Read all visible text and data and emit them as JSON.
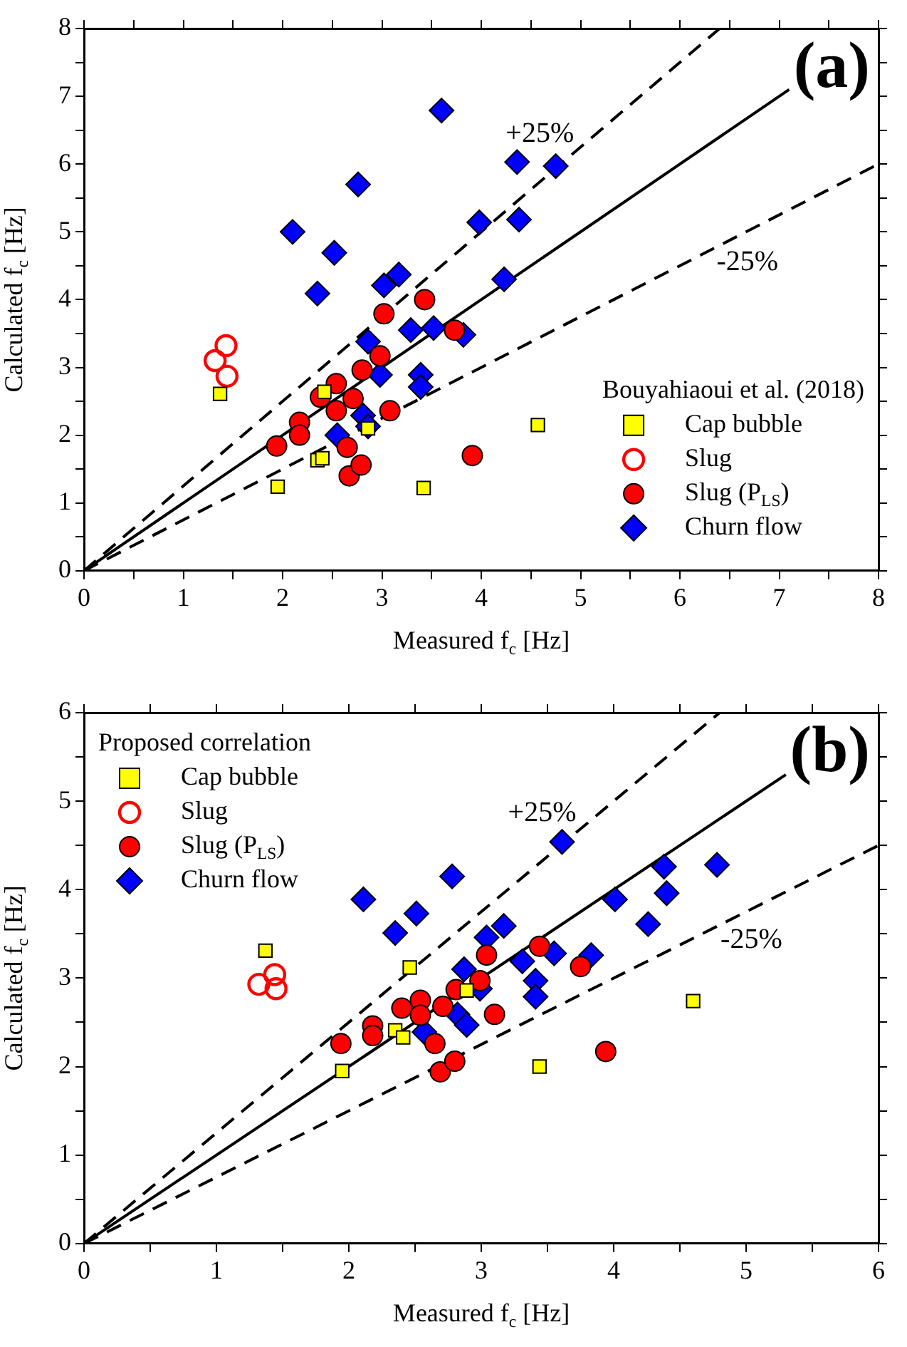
{
  "chart_data": [
    {
      "type": "scatter",
      "xlabel": "Measured f$_{c}$ [Hz]",
      "ylabel": "Calculated f$_{c}$ [Hz]",
      "legend_title": "Bouyahiaoui et al. (2018)",
      "legend": "bottom right",
      "grid": false,
      "xlim": [
        0,
        8
      ],
      "ylim": [
        0,
        8
      ],
      "xticks": [
        0,
        {
          "value": 0.5,
          "label": null
        },
        1,
        {
          "value": 1.5,
          "label": null
        },
        2,
        {
          "value": 2.5,
          "label": null
        },
        3,
        {
          "value": 3.5,
          "label": null
        },
        4,
        {
          "value": 4.5,
          "label": null
        },
        5,
        {
          "value": 5.5,
          "label": null
        },
        6,
        {
          "value": 6.5,
          "label": null
        },
        7,
        {
          "value": 7.5,
          "label": null
        },
        8
      ],
      "yticks": [
        0,
        {
          "value": 0.5,
          "label": null
        },
        1,
        {
          "value": 1.5,
          "label": null
        },
        2,
        {
          "value": 2.5,
          "label": null
        },
        3,
        {
          "value": 3.5,
          "label": null
        },
        4,
        {
          "value": 4.5,
          "label": null
        },
        5,
        {
          "value": 5.5,
          "label": null
        },
        6,
        {
          "value": 6.5,
          "label": null
        },
        7,
        {
          "value": 7.5,
          "label": null
        },
        8
      ],
      "annotations": [
        "(a)",
        {
          "text": "+25%",
          "x": 4.59,
          "y": 5.74
        },
        {
          "text": "-25%",
          "x": 6.68,
          "y": 5.01
        }
      ],
      "series": [
        {
          "type": "line",
          "color": "#000000",
          "marker": "none",
          "line_style": "solid",
          "x": [
            0,
            7.1
          ],
          "values": [
            0,
            7.1
          ]
        },
        {
          "type": "line",
          "color": "#000000",
          "marker": "none",
          "line_style": "dashed",
          "x": [
            0,
            6.4
          ],
          "values": [
            0,
            8
          ]
        },
        {
          "type": "line",
          "color": "#000000",
          "marker": "none",
          "line_style": "dashed",
          "x": [
            0,
            8
          ],
          "values": [
            0,
            6
          ]
        },
        {
          "name": "Cap bubble",
          "color": "#ffff00",
          "marker": "square",
          "x": [
            1.37,
            1.95,
            2.35,
            2.4,
            2.42,
            2.86,
            3.42,
            4.57
          ],
          "values": [
            2.61,
            1.24,
            1.63,
            1.66,
            2.64,
            2.1,
            1.22,
            2.15
          ]
        },
        {
          "name": "Slug",
          "color": "#ff0000",
          "marker": "circle-open",
          "x": [
            1.32,
            1.43,
            1.44
          ],
          "values": [
            3.1,
            3.32,
            2.87
          ]
        },
        {
          "name": "Slug (P$_{LS}$)",
          "color": "#ff0000",
          "marker": "circle",
          "x": [
            1.94,
            2.17,
            2.17,
            2.38,
            2.54,
            2.54,
            2.71,
            2.8,
            2.65,
            2.67,
            2.79,
            2.98,
            3.02,
            3.08,
            3.43,
            3.73,
            3.91
          ],
          "values": [
            1.84,
            2.19,
            2.0,
            2.56,
            2.76,
            2.36,
            2.54,
            2.96,
            1.82,
            1.4,
            1.56,
            3.17,
            3.79,
            2.36,
            4.0,
            3.55,
            1.7
          ]
        },
        {
          "name": "Churn flow",
          "color": "#0000ff",
          "marker": "diamond",
          "x": [
            3.6,
            2.76,
            2.1,
            2.52,
            2.35,
            3.02,
            3.17,
            2.86,
            3.29,
            3.52,
            3.82,
            2.98,
            3.39,
            3.39,
            2.81,
            2.86,
            2.55,
            3.98,
            4.23,
            4.36,
            4.75,
            4.38
          ],
          "values": [
            6.79,
            5.7,
            5.0,
            4.69,
            4.09,
            4.21,
            4.37,
            3.38,
            3.55,
            3.58,
            3.48,
            2.89,
            2.89,
            2.71,
            2.29,
            2.13,
            2.0,
            5.14,
            4.3,
            6.03,
            5.97,
            5.18
          ]
        }
      ]
    },
    {
      "type": "scatter",
      "xlabel": "Measured f$_{c}$ [Hz]",
      "ylabel": "Calculated f$_{c}$ [Hz]",
      "legend_title": "Proposed correlation",
      "legend": "top left",
      "grid": false,
      "xlim": [
        0,
        6
      ],
      "ylim": [
        0,
        6
      ],
      "xticks": [
        0,
        {
          "value": 0.5,
          "label": null
        },
        1,
        {
          "value": 1.5,
          "label": null
        },
        2,
        {
          "value": 2.5,
          "label": null
        },
        3,
        {
          "value": 3.5,
          "label": null
        },
        4,
        {
          "value": 4.5,
          "label": null
        },
        5,
        {
          "value": 5.5,
          "label": null
        },
        6
      ],
      "yticks": [
        0,
        {
          "value": 0.5,
          "label": null
        },
        1,
        {
          "value": 1.5,
          "label": null
        },
        2,
        {
          "value": 2.5,
          "label": null
        },
        3,
        {
          "value": 3.5,
          "label": null
        },
        4,
        {
          "value": 4.5,
          "label": null
        },
        5,
        {
          "value": 5.5,
          "label": null
        },
        6
      ],
      "annotations": [
        "(b)",
        {
          "text": "+25%",
          "x": 3.46,
          "y": 4.325
        },
        {
          "text": "-25%",
          "x": 5.04,
          "y": 3.78
        }
      ],
      "series": [
        {
          "type": "line",
          "color": "#000000",
          "marker": "none",
          "line_style": "solid",
          "x": [
            0,
            5.3
          ],
          "values": [
            0,
            5.3
          ]
        },
        {
          "type": "line",
          "color": "#000000",
          "marker": "none",
          "line_style": "dashed",
          "x": [
            0,
            4.8
          ],
          "values": [
            0,
            6
          ]
        },
        {
          "type": "line",
          "color": "#000000",
          "marker": "none",
          "line_style": "dashed",
          "x": [
            0,
            6
          ],
          "values": [
            0,
            4.5
          ]
        },
        {
          "name": "Cap bubble",
          "color": "#ffff00",
          "marker": "square",
          "x": [
            1.37,
            1.95,
            2.35,
            2.41,
            2.46,
            2.89,
            3.44,
            4.6
          ],
          "values": [
            3.31,
            1.95,
            2.41,
            2.33,
            3.12,
            2.86,
            2.0,
            2.74
          ]
        },
        {
          "name": "Slug",
          "color": "#ff0000",
          "marker": "circle-open",
          "x": [
            1.32,
            1.44,
            1.45
          ],
          "values": [
            2.93,
            3.04,
            2.88
          ]
        },
        {
          "name": "Slug (P$_{LS}$)",
          "color": "#ff0000",
          "marker": "circle",
          "x": [
            1.94,
            2.18,
            2.18,
            2.4,
            2.54,
            2.54,
            2.71,
            2.81,
            2.65,
            2.69,
            2.8,
            2.99,
            3.04,
            3.1,
            3.44,
            3.75,
            3.94
          ],
          "values": [
            2.26,
            2.46,
            2.35,
            2.66,
            2.75,
            2.58,
            2.68,
            2.87,
            2.26,
            1.94,
            2.06,
            2.97,
            3.26,
            2.59,
            3.36,
            3.13,
            2.17
          ]
        },
        {
          "name": "Churn flow",
          "color": "#0000ff",
          "marker": "diamond",
          "x": [
            2.11,
            2.78,
            2.51,
            2.35,
            3.04,
            3.17,
            2.87,
            2.99,
            2.82,
            2.89,
            2.57,
            3.61,
            4.38,
            4.78,
            4.4,
            4.01,
            4.26,
            3.31,
            3.55,
            3.83,
            3.41,
            3.41
          ],
          "values": [
            3.89,
            4.15,
            3.73,
            3.51,
            3.46,
            3.59,
            3.1,
            2.88,
            2.59,
            2.47,
            2.39,
            4.54,
            4.26,
            4.28,
            3.96,
            3.89,
            3.61,
            3.19,
            3.28,
            3.26,
            2.97,
            2.79
          ]
        }
      ]
    }
  ]
}
